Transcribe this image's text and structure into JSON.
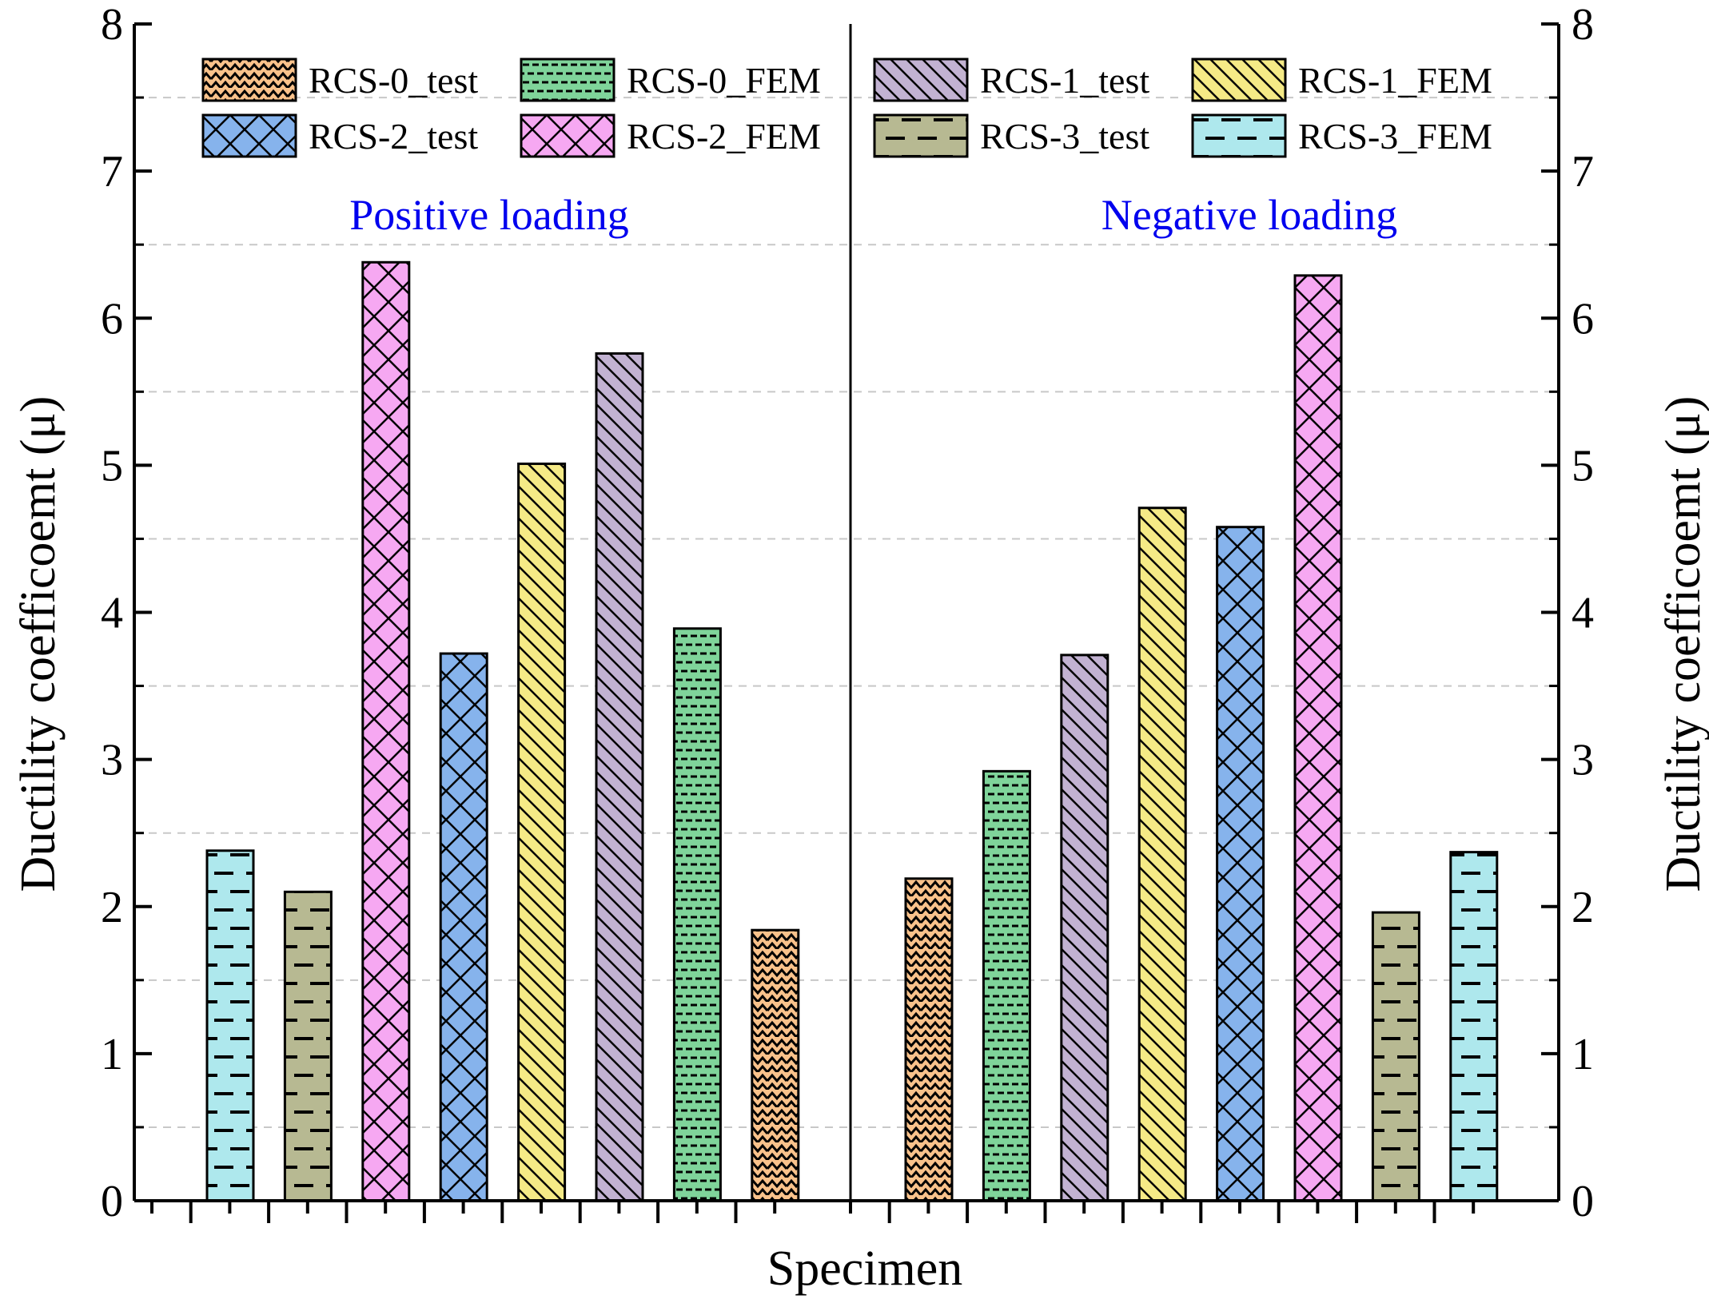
{
  "chart_data": {
    "type": "bar",
    "xlabel": "Specimen",
    "ylabel": "Ductility coefficoemt (μ)",
    "ylim": [
      0,
      8
    ],
    "yticks": [
      0,
      1,
      2,
      3,
      4,
      5,
      6,
      7,
      8
    ],
    "grid": "dashed horizontal",
    "legend": {
      "placement": "top",
      "entries": [
        {
          "key": "RCS-0_test",
          "label": "RCS-0_test",
          "fill": "#f9c28b",
          "pattern": "wave"
        },
        {
          "key": "RCS-0_FEM",
          "label": "RCS-0_FEM",
          "fill": "#7fd49a",
          "pattern": "dots"
        },
        {
          "key": "RCS-1_test",
          "label": "RCS-1_test",
          "fill": "#c2b2d2",
          "pattern": "backslash"
        },
        {
          "key": "RCS-1_FEM",
          "label": "RCS-1_FEM",
          "fill": "#f5ea86",
          "pattern": "backslash"
        },
        {
          "key": "RCS-2_test",
          "label": "RCS-2_test",
          "fill": "#86b3ec",
          "pattern": "crosshatch"
        },
        {
          "key": "RCS-2_FEM",
          "label": "RCS-2_FEM",
          "fill": "#f6a8f2",
          "pattern": "crosshatch"
        },
        {
          "key": "RCS-3_test",
          "label": "RCS-3_test",
          "fill": "#b7b992",
          "pattern": "dashes"
        },
        {
          "key": "RCS-3_FEM",
          "label": "RCS-3_FEM",
          "fill": "#aee8ed",
          "pattern": "dashes"
        }
      ]
    },
    "panels": [
      {
        "label": "Positive loading",
        "label_color": "#0000ee",
        "bars": [
          {
            "series": "RCS-3_FEM",
            "value": 2.38
          },
          {
            "series": "RCS-3_test",
            "value": 2.1
          },
          {
            "series": "RCS-2_FEM",
            "value": 6.38
          },
          {
            "series": "RCS-2_test",
            "value": 3.72
          },
          {
            "series": "RCS-1_FEM",
            "value": 5.01
          },
          {
            "series": "RCS-1_test",
            "value": 5.76
          },
          {
            "series": "RCS-0_FEM",
            "value": 3.89
          },
          {
            "series": "RCS-0_test",
            "value": 1.84
          }
        ]
      },
      {
        "label": "Negative loading",
        "label_color": "#0000ee",
        "bars": [
          {
            "series": "RCS-0_test",
            "value": 2.19
          },
          {
            "series": "RCS-0_FEM",
            "value": 2.92
          },
          {
            "series": "RCS-1_test",
            "value": 3.71
          },
          {
            "series": "RCS-1_FEM",
            "value": 4.71
          },
          {
            "series": "RCS-2_test",
            "value": 4.58
          },
          {
            "series": "RCS-2_FEM",
            "value": 6.29
          },
          {
            "series": "RCS-3_test",
            "value": 1.96
          },
          {
            "series": "RCS-3_FEM",
            "value": 2.37
          }
        ]
      }
    ]
  }
}
